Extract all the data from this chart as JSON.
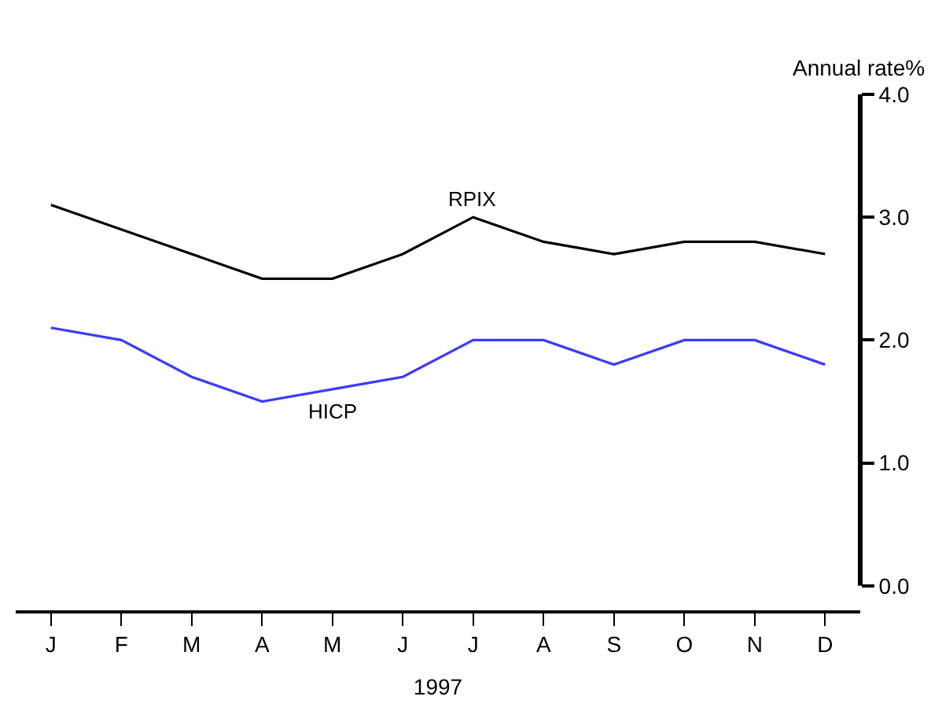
{
  "chart_data": {
    "type": "line",
    "categories": [
      "J",
      "F",
      "M",
      "A",
      "M",
      "J",
      "J",
      "A",
      "S",
      "O",
      "N",
      "D"
    ],
    "series": [
      {
        "name": "RPIX",
        "color": "#000000",
        "values": [
          3.1,
          2.9,
          2.7,
          2.5,
          2.5,
          2.7,
          3.0,
          2.8,
          2.7,
          2.8,
          2.8,
          2.7
        ]
      },
      {
        "name": "HICP",
        "color": "#3b3bff",
        "values": [
          2.1,
          2.0,
          1.7,
          1.5,
          1.6,
          1.7,
          2.0,
          2.0,
          1.8,
          2.0,
          2.0,
          1.8
        ]
      }
    ],
    "xlabel": "1997",
    "ylabel": "Annual rate%",
    "ylim": [
      -0.2,
      4.0
    ],
    "yticks": [
      {
        "value": 0,
        "label": "0.0"
      },
      {
        "value": 1,
        "label": "1.0"
      },
      {
        "value": 2,
        "label": "2.0"
      },
      {
        "value": 3,
        "label": "3.0"
      },
      {
        "value": 4,
        "label": "4.0"
      }
    ],
    "grid": false,
    "legend": false,
    "marker": "none",
    "line_style": "solid"
  }
}
